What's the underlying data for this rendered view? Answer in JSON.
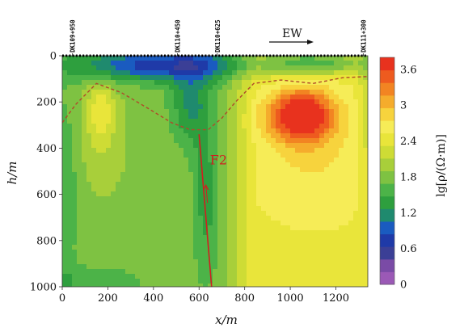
{
  "chart_data": {
    "type": "heatmap",
    "title": "",
    "xlabel": "x/m",
    "ylabel": "h/m",
    "xlim": [
      0,
      1340
    ],
    "ylim": [
      0,
      1000
    ],
    "y_inverted": true,
    "x_ticks": [
      0,
      200,
      400,
      600,
      800,
      1000,
      1200
    ],
    "y_ticks": [
      0,
      200,
      400,
      600,
      800,
      1000
    ],
    "stations": [
      {
        "label": "DK109+950",
        "x": 45
      },
      {
        "label": "DK110+450",
        "x": 505
      },
      {
        "label": "DK110+625",
        "x": 680
      },
      {
        "label": "DK111+300",
        "x": 1320
      }
    ],
    "direction_label": "EW",
    "fault_label": "F2",
    "fault_line": [
      [
        600,
        340
      ],
      [
        655,
        1000
      ]
    ],
    "colorbar": {
      "label": "lg[ρ/(Ω·m)]",
      "min": 0,
      "max": 3.8,
      "ticks": [
        "0",
        "0.6",
        "1.2",
        "1.8",
        "2.4",
        "3",
        "3.6"
      ],
      "colors": [
        "#9b59b6",
        "#7a4ba6",
        "#3b3f96",
        "#1f3aa8",
        "#1a5bc0",
        "#1f8a6e",
        "#2e9f3e",
        "#4cb348",
        "#7ec242",
        "#a8cf3a",
        "#cedc35",
        "#e9e53a",
        "#f6ec57",
        "#f7d33d",
        "#f5ac2c",
        "#f28422",
        "#ee5b1f",
        "#e8321e"
      ]
    },
    "anomalies": [
      {
        "x": 1050,
        "y": 260,
        "value": 3.7
      },
      {
        "x": 160,
        "y": 230,
        "value": 2.3
      },
      {
        "x": 1000,
        "y": 700,
        "value": 2.6
      },
      {
        "x": 620,
        "y": 600,
        "value": 1.5
      },
      {
        "x": 140,
        "y": 650,
        "value": 1.6
      },
      {
        "x": 550,
        "y": 80,
        "value": 0.9
      },
      {
        "x": 340,
        "y": 60,
        "value": 0.9
      },
      {
        "x": 1050,
        "y": 70,
        "value": 0.9
      }
    ]
  }
}
